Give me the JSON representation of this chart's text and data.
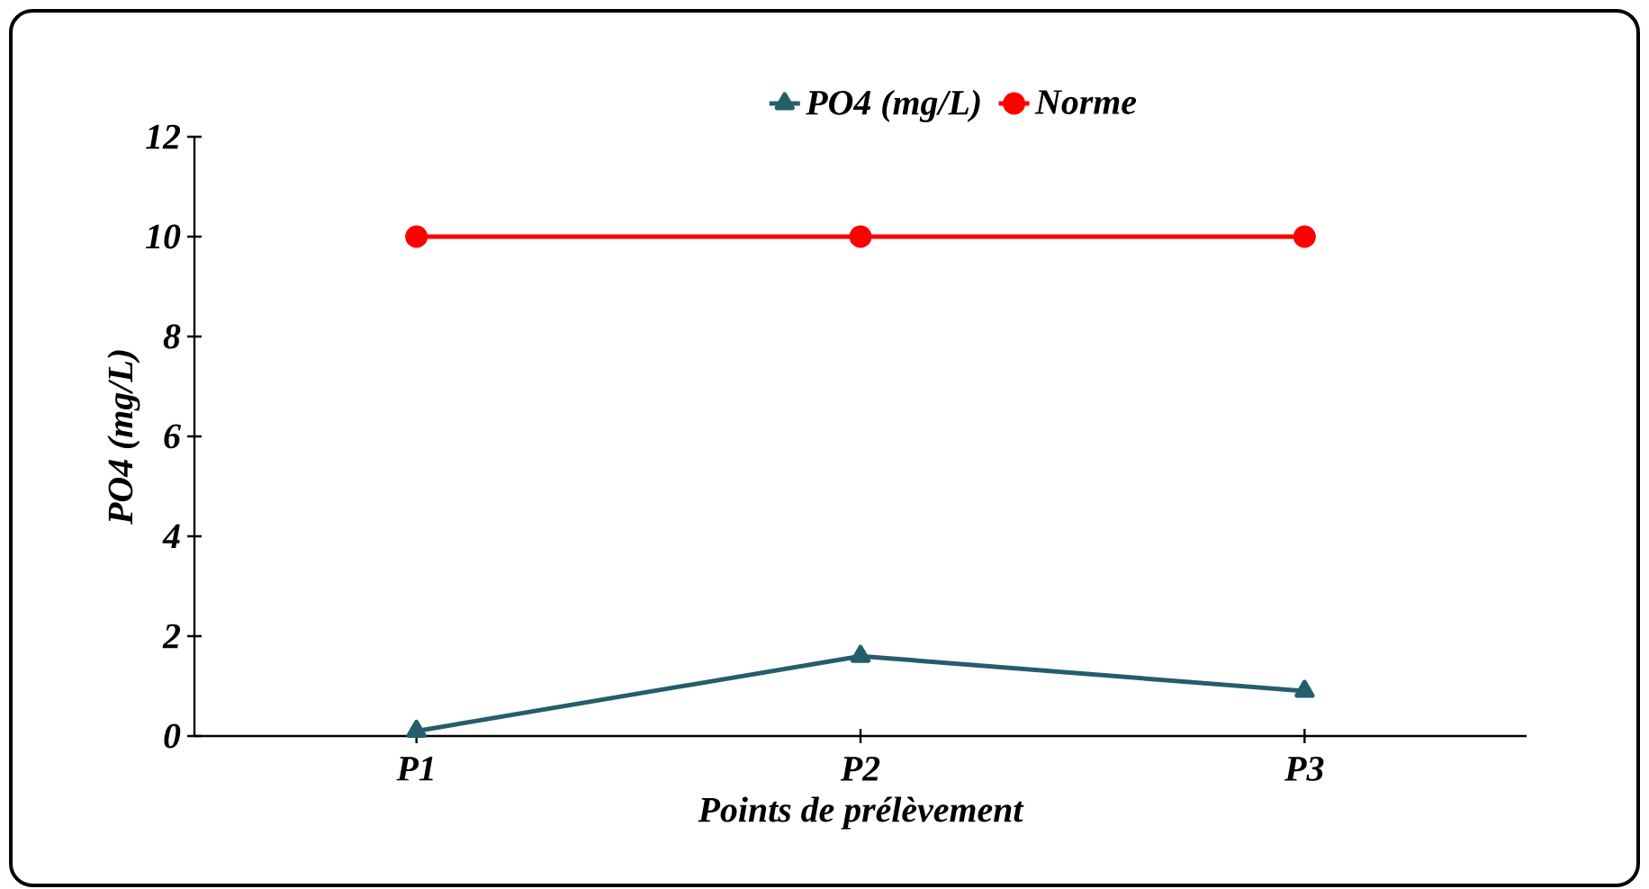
{
  "chart_data": {
    "type": "line",
    "xlabel": "Points de prélèvement",
    "ylabel": "PO4 (mg/L)",
    "categories": [
      "P1",
      "P2",
      "P3"
    ],
    "series": [
      {
        "name": "PO4 (mg/L)",
        "color": "#245e6c",
        "values": [
          0.1,
          1.6,
          0.9
        ],
        "marker": "triangle"
      },
      {
        "name": "Norme",
        "color": "#ff0000",
        "values": [
          10,
          10,
          10
        ],
        "marker": "circle"
      }
    ],
    "ylim": [
      0,
      12
    ],
    "yticks": [
      0,
      2,
      4,
      6,
      8,
      10,
      12
    ],
    "grid": false,
    "legend": "top",
    "line_style": "solid"
  }
}
